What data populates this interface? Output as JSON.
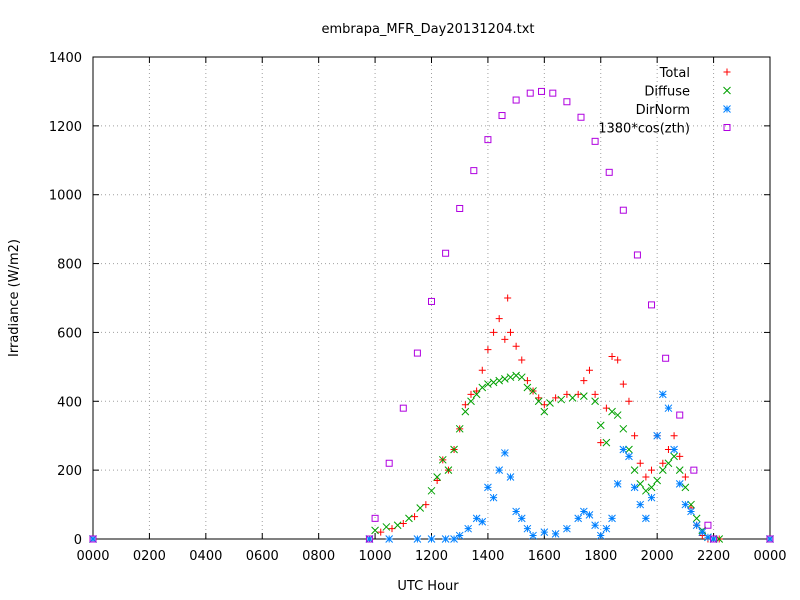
{
  "chart_data": {
    "type": "scatter",
    "title": "embrapa_MFR_Day20131204.txt",
    "xlabel": "UTC Hour",
    "ylabel": "Irradiance (W/m2)",
    "xlim": [
      0,
      24
    ],
    "ylim": [
      0,
      1400
    ],
    "xticks": [
      {
        "value": 0,
        "label": "0000"
      },
      {
        "value": 2,
        "label": "0200"
      },
      {
        "value": 4,
        "label": "0400"
      },
      {
        "value": 6,
        "label": "0600"
      },
      {
        "value": 8,
        "label": "0800"
      },
      {
        "value": 10,
        "label": "1000"
      },
      {
        "value": 12,
        "label": "1200"
      },
      {
        "value": 14,
        "label": "1400"
      },
      {
        "value": 16,
        "label": "1600"
      },
      {
        "value": 18,
        "label": "1800"
      },
      {
        "value": 20,
        "label": "2000"
      },
      {
        "value": 22,
        "label": "2200"
      },
      {
        "value": 24,
        "label": "0000"
      }
    ],
    "yticks": [
      0,
      200,
      400,
      600,
      800,
      1000,
      1200,
      1400
    ],
    "grid": true,
    "legend_position": "top-right",
    "series": [
      {
        "name": "Total",
        "marker": "plus",
        "color": "#ff0000",
        "x": [
          0,
          9.8,
          10.2,
          10.6,
          11.0,
          11.4,
          11.8,
          12.2,
          12.4,
          12.6,
          12.8,
          13.0,
          13.2,
          13.4,
          13.6,
          13.8,
          14.0,
          14.2,
          14.4,
          14.6,
          14.7,
          14.8,
          15.0,
          15.2,
          15.4,
          15.6,
          15.8,
          16.0,
          16.4,
          16.8,
          17.2,
          17.4,
          17.6,
          17.8,
          18.0,
          18.2,
          18.4,
          18.6,
          18.8,
          19.0,
          19.2,
          19.4,
          19.6,
          19.8,
          20.0,
          20.2,
          20.4,
          20.6,
          20.8,
          21.0,
          21.2,
          21.4,
          21.6,
          21.8,
          22.0,
          22.2,
          24
        ],
        "y": [
          0,
          0,
          20,
          30,
          45,
          65,
          100,
          170,
          230,
          200,
          260,
          320,
          390,
          420,
          430,
          490,
          550,
          600,
          640,
          580,
          700,
          600,
          560,
          520,
          460,
          430,
          410,
          390,
          410,
          420,
          420,
          460,
          490,
          420,
          280,
          380,
          530,
          520,
          450,
          400,
          300,
          220,
          180,
          200,
          300,
          220,
          260,
          300,
          240,
          180,
          90,
          40,
          10,
          0,
          0,
          0,
          0
        ]
      },
      {
        "name": "Diffuse",
        "marker": "cross",
        "color": "#00a000",
        "x": [
          0,
          9.8,
          10.0,
          10.4,
          10.8,
          11.2,
          11.6,
          12.0,
          12.2,
          12.4,
          12.6,
          12.8,
          13.0,
          13.2,
          13.4,
          13.6,
          13.8,
          14.0,
          14.2,
          14.4,
          14.6,
          14.8,
          15.0,
          15.2,
          15.4,
          15.6,
          15.8,
          16.0,
          16.2,
          16.6,
          17.0,
          17.4,
          17.8,
          18.0,
          18.2,
          18.4,
          18.6,
          18.8,
          19.0,
          19.2,
          19.4,
          19.6,
          19.8,
          20.0,
          20.2,
          20.4,
          20.6,
          20.8,
          21.0,
          21.2,
          21.4,
          21.6,
          21.8,
          22.0,
          22.2,
          24
        ],
        "y": [
          0,
          0,
          25,
          35,
          40,
          60,
          90,
          140,
          180,
          230,
          200,
          260,
          320,
          370,
          400,
          420,
          440,
          450,
          455,
          460,
          465,
          470,
          475,
          470,
          440,
          430,
          400,
          370,
          395,
          405,
          410,
          415,
          400,
          330,
          280,
          370,
          360,
          320,
          260,
          200,
          160,
          140,
          150,
          170,
          200,
          220,
          240,
          200,
          150,
          100,
          60,
          25,
          5,
          0,
          0,
          0
        ]
      },
      {
        "name": "DirNorm",
        "marker": "star",
        "color": "#0080ff",
        "x": [
          0,
          9.8,
          10.5,
          11.5,
          12.0,
          12.5,
          12.8,
          13.0,
          13.3,
          13.6,
          13.8,
          14.0,
          14.2,
          14.4,
          14.6,
          14.8,
          15.0,
          15.2,
          15.4,
          15.6,
          16.0,
          16.4,
          16.8,
          17.2,
          17.4,
          17.6,
          17.8,
          18.0,
          18.2,
          18.4,
          18.6,
          18.8,
          19.0,
          19.2,
          19.4,
          19.6,
          19.8,
          20.0,
          20.2,
          20.4,
          20.6,
          20.8,
          21.0,
          21.2,
          21.4,
          21.6,
          21.8,
          22.0,
          24
        ],
        "y": [
          0,
          0,
          0,
          0,
          0,
          0,
          0,
          10,
          30,
          60,
          50,
          150,
          120,
          200,
          250,
          180,
          80,
          60,
          30,
          10,
          20,
          15,
          30,
          60,
          80,
          70,
          40,
          10,
          30,
          60,
          160,
          260,
          240,
          150,
          100,
          60,
          120,
          300,
          420,
          380,
          260,
          160,
          100,
          80,
          40,
          20,
          5,
          0,
          0
        ]
      },
      {
        "name": "1380*cos(zth)",
        "marker": "square",
        "color": "#b000e0",
        "x": [
          0,
          9.8,
          10.0,
          10.5,
          11.0,
          11.5,
          12.0,
          12.5,
          13.0,
          13.5,
          14.0,
          14.5,
          15.0,
          15.5,
          15.9,
          16.3,
          16.8,
          17.3,
          17.8,
          18.3,
          18.8,
          19.3,
          19.8,
          20.3,
          20.8,
          21.3,
          21.8,
          22.0,
          24
        ],
        "y": [
          0,
          0,
          60,
          220,
          380,
          540,
          690,
          830,
          960,
          1070,
          1160,
          1230,
          1275,
          1295,
          1300,
          1295,
          1270,
          1225,
          1155,
          1065,
          955,
          825,
          680,
          525,
          360,
          200,
          40,
          0,
          0
        ]
      }
    ]
  }
}
